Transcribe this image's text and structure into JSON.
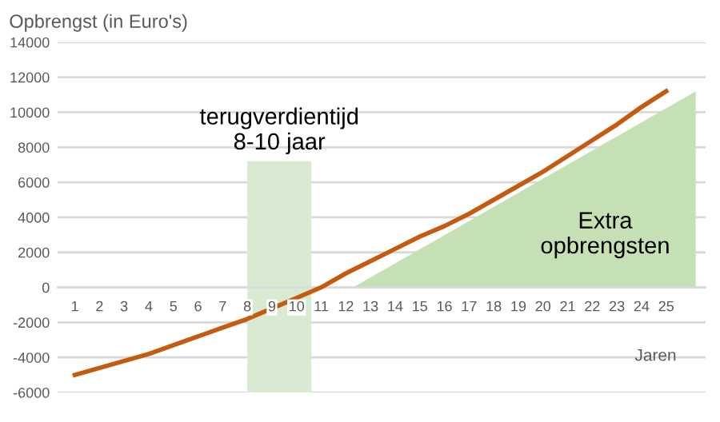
{
  "chart_data": {
    "type": "line",
    "ylabel": "Opbrengst (in Euro's)",
    "xlabel": "Jaren",
    "x": [
      1,
      2,
      3,
      4,
      5,
      6,
      7,
      8,
      9,
      10,
      11,
      12,
      13,
      14,
      15,
      16,
      17,
      18,
      19,
      20,
      21,
      22,
      23,
      24,
      25
    ],
    "xlim": [
      0.3,
      26.6
    ],
    "xticks": [
      1,
      2,
      3,
      4,
      5,
      6,
      7,
      8,
      9,
      10,
      11,
      12,
      13,
      14,
      15,
      16,
      17,
      18,
      19,
      20,
      21,
      22,
      23,
      24,
      25
    ],
    "ylim": [
      -6000,
      14000
    ],
    "yticks": [
      -6000,
      -4000,
      -2000,
      0,
      2000,
      4000,
      6000,
      8000,
      10000,
      12000,
      14000
    ],
    "grid": "y",
    "series": [
      {
        "type": "area",
        "color": "#c5e0b4",
        "x": [
          12.3,
          26.2
        ],
        "values": [
          0,
          11200
        ]
      },
      {
        "color": "#c55a11",
        "values": [
          -5000,
          -4600,
          -4200,
          -3800,
          -3300,
          -2800,
          -2300,
          -1800,
          -1200,
          -600,
          0,
          800,
          1500,
          2200,
          2900,
          3500,
          4200,
          5000,
          5800,
          6600,
          7500,
          8400,
          9300,
          10300,
          11200
        ]
      }
    ],
    "bands": [
      {
        "axis": "x",
        "from": 8,
        "to": 10.6,
        "label": "terugverdientijd\n8-10 jaar",
        "color": "#d9ead3"
      }
    ],
    "annotations": [
      "Extra\nopbrengsten"
    ]
  }
}
